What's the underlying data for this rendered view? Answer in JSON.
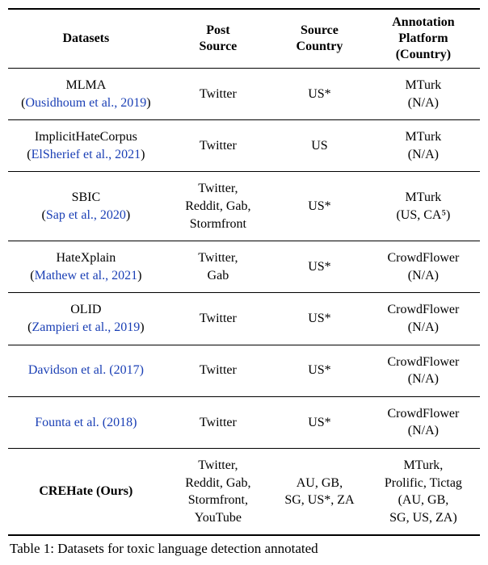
{
  "table": {
    "title_fontsize": 16,
    "row_fontsize": 16,
    "background": "#ffffff",
    "cite_color": "#1a3fb5",
    "rule_color": "#000000",
    "columns": [
      {
        "header_l1": "Datasets",
        "header_l2": ""
      },
      {
        "header_l1": "Post",
        "header_l2": "Source"
      },
      {
        "header_l1": "Source",
        "header_l2": "Country"
      },
      {
        "header_l1": "Annotation",
        "header_l2": "Platform",
        "header_l3": "(Country)"
      }
    ],
    "rows": [
      {
        "name": "MLMA",
        "cite": "Ousidhoum et al., 2019",
        "cite_wrap": "paren",
        "bold": false,
        "post_source": "Twitter",
        "source_country": "US*",
        "platform_l1": "MTurk",
        "platform_l2": "(N/A)"
      },
      {
        "name": "ImplicitHateCorpus",
        "cite": "ElSherief et al., 2021",
        "cite_wrap": "paren",
        "bold": false,
        "post_source": "Twitter",
        "source_country": "US",
        "platform_l1": "MTurk",
        "platform_l2": "(N/A)"
      },
      {
        "name": "SBIC",
        "cite": "Sap et al., 2020",
        "cite_wrap": "paren",
        "bold": false,
        "post_source": "Twitter,\nReddit, Gab,\nStormfront",
        "source_country": "US*",
        "platform_l1": "MTurk",
        "platform_l2": "(US, CA⁵)"
      },
      {
        "name": "HateXplain",
        "cite": "Mathew et al., 2021",
        "cite_wrap": "paren",
        "bold": false,
        "post_source": "Twitter,\nGab",
        "source_country": "US*",
        "platform_l1": "CrowdFlower",
        "platform_l2": "(N/A)"
      },
      {
        "name": "OLID",
        "cite": "Zampieri et al., 2019",
        "cite_wrap": "paren",
        "bold": false,
        "post_source": "Twitter",
        "source_country": "US*",
        "platform_l1": "CrowdFlower",
        "platform_l2": "(N/A)"
      },
      {
        "name": "",
        "cite": "Davidson et al. (2017)",
        "cite_wrap": "none",
        "bold": false,
        "post_source": "Twitter",
        "source_country": "US*",
        "platform_l1": "CrowdFlower",
        "platform_l2": "(N/A)"
      },
      {
        "name": "",
        "cite": "Founta et al. (2018)",
        "cite_wrap": "none",
        "bold": false,
        "post_source": "Twitter",
        "source_country": "US*",
        "platform_l1": "CrowdFlower",
        "platform_l2": "(N/A)"
      },
      {
        "name": "CREHate (Ours)",
        "cite": "",
        "cite_wrap": "none",
        "bold": true,
        "post_source": "Twitter,\nReddit, Gab,\nStormfront,\nYouTube",
        "source_country": "AU, GB,\nSG, US*, ZA",
        "platform_l1": "MTurk,",
        "platform_l2": "Prolific, Tictag",
        "platform_l3": "(AU, GB,",
        "platform_l4": "SG, US, ZA)"
      }
    ]
  },
  "caption": "Table 1: Datasets for toxic language detection annotated"
}
